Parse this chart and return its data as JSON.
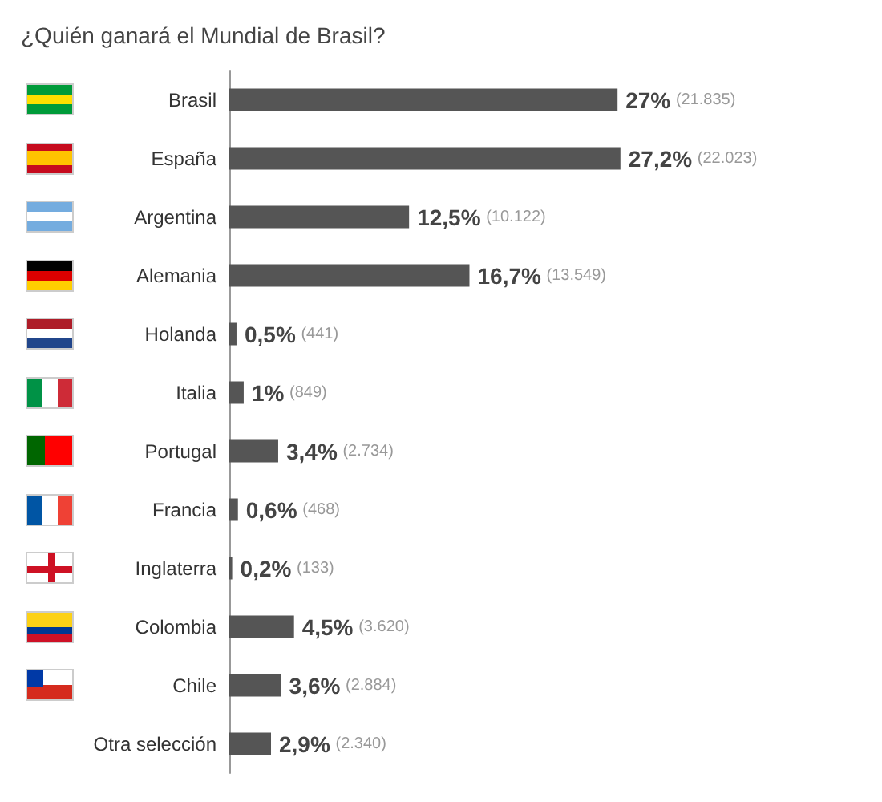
{
  "chart_data": {
    "type": "bar",
    "orientation": "horizontal",
    "title": "¿Quién ganará el Mundial de Brasil?",
    "categories": [
      "Brasil",
      "España",
      "Argentina",
      "Alemania",
      "Holanda",
      "Italia",
      "Portugal",
      "Francia",
      "Inglaterra",
      "Colombia",
      "Chile",
      "Otra selección"
    ],
    "values": [
      27,
      27.2,
      12.5,
      16.7,
      0.5,
      1,
      3.4,
      0.6,
      0.2,
      4.5,
      3.6,
      2.9
    ],
    "value_labels": [
      "27%",
      "27,2%",
      "12,5%",
      "16,7%",
      "0,5%",
      "1%",
      "3,4%",
      "0,6%",
      "0,2%",
      "4,5%",
      "3,6%",
      "2,9%"
    ],
    "color": "#555555",
    "annotations": [
      "(21.835)",
      "(22.023)",
      "(10.122)",
      "(13.549)",
      "(441)",
      "(849)",
      "(2.734)",
      "(468)",
      "(133)",
      "(3.620)",
      "(2.884)",
      "(2.340)"
    ]
  }
}
